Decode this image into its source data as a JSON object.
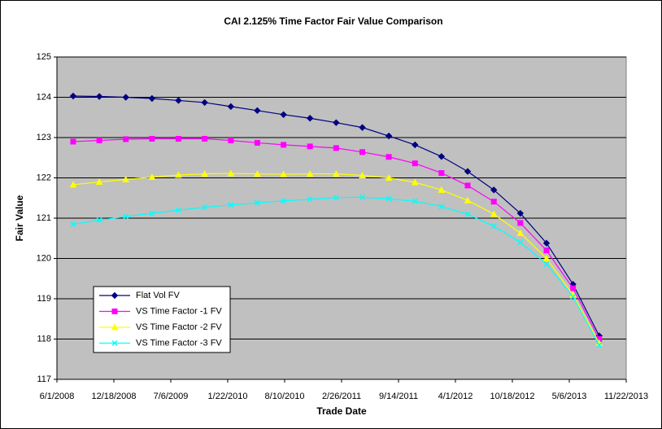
{
  "chart_data": {
    "type": "line",
    "title": "CAI 2.125% Time Factor Fair Value Comparison",
    "x_label": "Trade Date",
    "y_label": "Fair Value",
    "x": [
      "2008-07-28",
      "2008-10-28",
      "2009-01-29",
      "2009-05-01",
      "2009-08-02",
      "2009-11-02",
      "2010-02-02",
      "2010-05-06",
      "2010-08-06",
      "2010-11-07",
      "2011-02-07",
      "2011-05-10",
      "2011-08-11",
      "2011-11-11",
      "2012-02-12",
      "2012-05-14",
      "2012-08-14",
      "2012-11-15",
      "2013-02-15",
      "2013-05-19",
      "2013-08-19"
    ],
    "series": [
      {
        "name": "Flat Vol FV",
        "color": "#000080",
        "marker": "diamond",
        "values": [
          124.03,
          124.02,
          124.0,
          123.97,
          123.92,
          123.87,
          123.77,
          123.67,
          123.57,
          123.48,
          123.37,
          123.25,
          123.04,
          122.82,
          122.53,
          122.16,
          121.7,
          121.12,
          120.38,
          119.36,
          118.08
        ]
      },
      {
        "name": "VS Time Factor -1 FV",
        "color": "#ff00ff",
        "marker": "square",
        "values": [
          122.9,
          122.93,
          122.96,
          122.97,
          122.97,
          122.97,
          122.93,
          122.87,
          122.82,
          122.78,
          122.74,
          122.64,
          122.52,
          122.36,
          122.12,
          121.81,
          121.41,
          120.88,
          120.2,
          119.26,
          118.0
        ]
      },
      {
        "name": "VS Time Factor -2 FV",
        "color": "#ffff00",
        "marker": "triangle",
        "values": [
          121.83,
          121.9,
          121.96,
          122.02,
          122.07,
          122.1,
          122.11,
          122.1,
          122.09,
          122.1,
          122.1,
          122.06,
          122.0,
          121.89,
          121.7,
          121.44,
          121.1,
          120.63,
          120.0,
          119.1,
          117.9
        ]
      },
      {
        "name": "VS Time Factor -3 FV",
        "color": "#00ffff",
        "marker": "x",
        "values": [
          120.85,
          120.95,
          121.04,
          121.12,
          121.2,
          121.27,
          121.33,
          121.38,
          121.43,
          121.47,
          121.51,
          121.52,
          121.48,
          121.42,
          121.29,
          121.1,
          120.8,
          120.4,
          119.86,
          119.05,
          117.85
        ]
      }
    ],
    "xlim": [
      "2008-06-01",
      "2013-11-22"
    ],
    "xticks": [
      {
        "value": "2008-06-01",
        "label": "6/1/2008"
      },
      {
        "value": "2008-12-18",
        "label": "12/18/2008"
      },
      {
        "value": "2009-07-06",
        "label": "7/6/2009"
      },
      {
        "value": "2010-01-22",
        "label": "1/22/2010"
      },
      {
        "value": "2010-08-10",
        "label": "8/10/2010"
      },
      {
        "value": "2011-02-26",
        "label": "2/26/2011"
      },
      {
        "value": "2011-09-14",
        "label": "9/14/2011"
      },
      {
        "value": "2012-04-01",
        "label": "4/1/2012"
      },
      {
        "value": "2012-10-18",
        "label": "10/18/2012"
      },
      {
        "value": "2013-05-06",
        "label": "5/6/2013"
      },
      {
        "value": "2013-11-22",
        "label": "11/22/2013"
      }
    ],
    "ylim": [
      117,
      125
    ],
    "yticks": [
      117,
      118,
      119,
      120,
      121,
      122,
      123,
      124,
      125
    ],
    "grid": true,
    "legend": "lower-left"
  }
}
